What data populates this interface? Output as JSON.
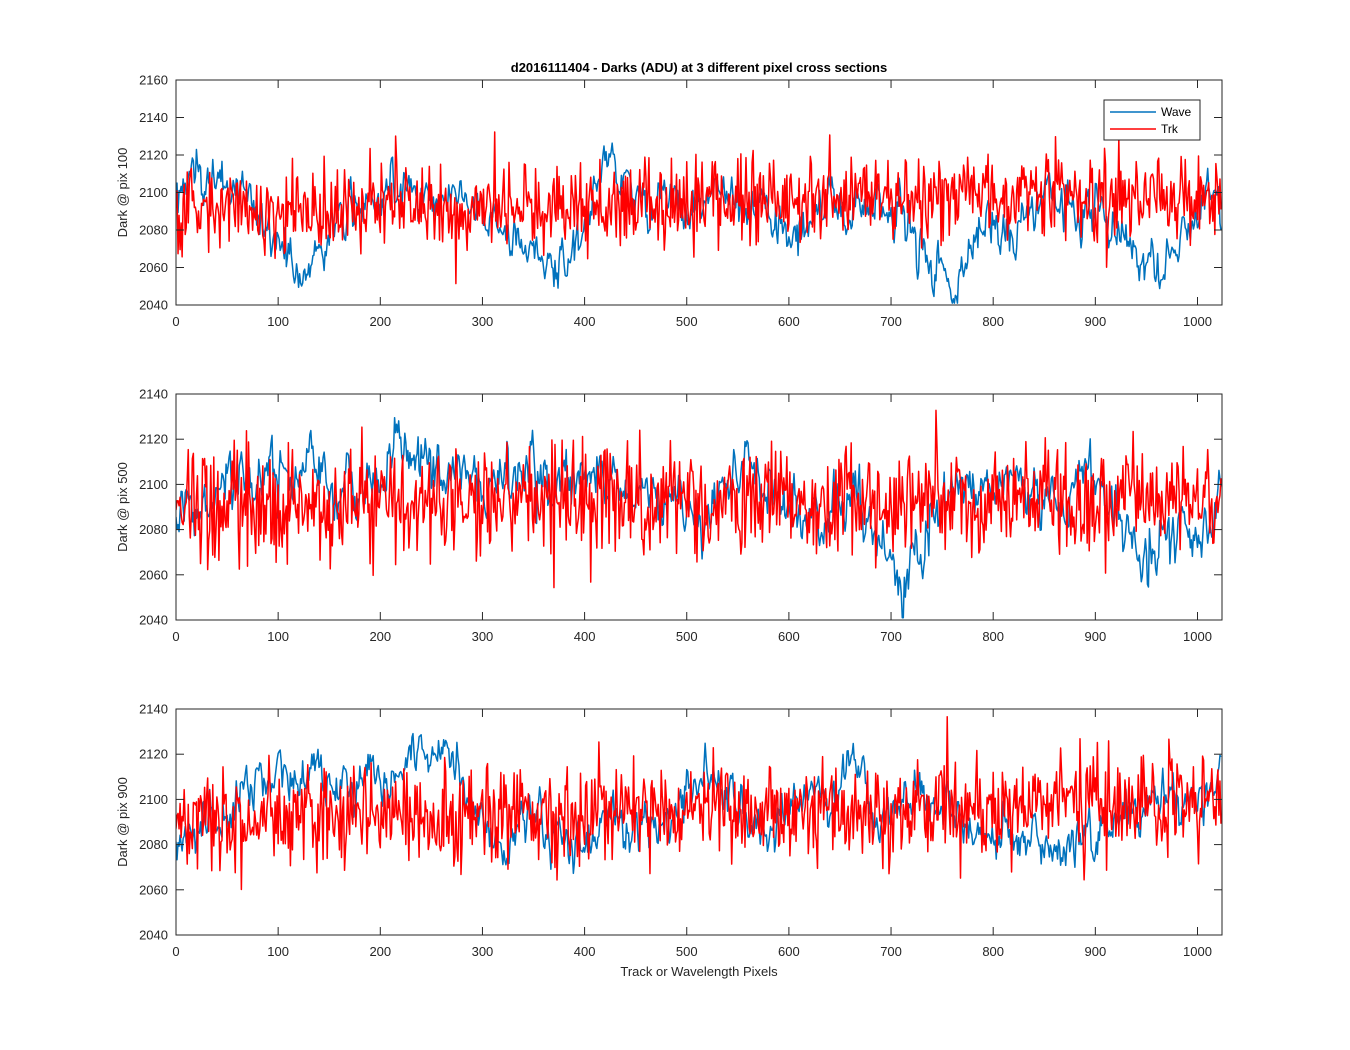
{
  "figure": {
    "title": "d2016111404 - Darks (ADU) at 3 different pixel cross sections",
    "xlabel": "Track or Wavelength Pixels"
  },
  "legend": {
    "entries": [
      "Wave",
      "Trk"
    ],
    "placement": "top-right of first subplot"
  },
  "colors": {
    "wave": "#0072BD",
    "trk": "#FF0000",
    "axes": "#262626",
    "background": "#ffffff"
  },
  "chart_data": [
    {
      "type": "line",
      "ylabel": "Dark @ pix 100",
      "xlim": [
        0,
        1024
      ],
      "ylim": [
        2040,
        2160
      ],
      "xticks": [
        0,
        100,
        200,
        300,
        400,
        500,
        600,
        700,
        800,
        900,
        1000
      ],
      "yticks": [
        2040,
        2060,
        2080,
        2100,
        2120,
        2140,
        2160
      ],
      "grid": false,
      "series": [
        {
          "name": "Wave",
          "knots": {
            "x": [
              0,
              20,
              50,
              80,
              100,
              115,
              130,
              160,
              200,
              215,
              240,
              270,
              300,
              330,
              360,
              380,
              400,
              410,
              420,
              440,
              450,
              480,
              500,
              530,
              560,
              580,
              600,
              630,
              660,
              690,
              710,
              730,
              750,
              762,
              775,
              800,
              820,
              850,
              870,
              900,
              920,
              940,
              960,
              975,
              990,
              1010,
              1024
            ],
            "y": [
              2100,
              2108,
              2105,
              2090,
              2070,
              2060,
              2062,
              2085,
              2100,
              2110,
              2097,
              2100,
              2090,
              2078,
              2060,
              2065,
              2080,
              2105,
              2120,
              2112,
              2092,
              2100,
              2090,
              2100,
              2088,
              2090,
              2072,
              2093,
              2090,
              2095,
              2085,
              2072,
              2060,
              2048,
              2068,
              2085,
              2075,
              2100,
              2093,
              2095,
              2082,
              2068,
              2064,
              2064,
              2080,
              2098,
              2100
            ]
          },
          "noise": 7
        },
        {
          "name": "Trk",
          "mean": 2090,
          "mean_trend_end": 2100,
          "noise": 15
        }
      ]
    },
    {
      "type": "line",
      "ylabel": "Dark @ pix 500",
      "xlim": [
        0,
        1024
      ],
      "ylim": [
        2040,
        2140
      ],
      "xticks": [
        0,
        100,
        200,
        300,
        400,
        500,
        600,
        700,
        800,
        900,
        1000
      ],
      "yticks": [
        2040,
        2060,
        2080,
        2100,
        2120,
        2140
      ],
      "grid": false,
      "series": [
        {
          "name": "Wave",
          "knots": {
            "x": [
              0,
              20,
              50,
              100,
              150,
              190,
              220,
              240,
              270,
              300,
              330,
              350,
              380,
              400,
              420,
              450,
              480,
              500,
              520,
              550,
              570,
              600,
              630,
              660,
              690,
              712,
              730,
              760,
              790,
              820,
              850,
              880,
              900,
              920,
              940,
              960,
              990,
              1010,
              1024
            ],
            "y": [
              2088,
              2083,
              2100,
              2100,
              2098,
              2102,
              2118,
              2112,
              2102,
              2095,
              2102,
              2103,
              2102,
              2108,
              2110,
              2095,
              2095,
              2090,
              2085,
              2110,
              2108,
              2088,
              2085,
              2095,
              2070,
              2055,
              2078,
              2098,
              2100,
              2097,
              2090,
              2095,
              2100,
              2088,
              2070,
              2075,
              2082,
              2076,
              2090
            ]
          },
          "noise": 7
        },
        {
          "name": "Trk",
          "mean": 2090,
          "mean_trend_end": 2094,
          "noise": 16
        }
      ]
    },
    {
      "type": "line",
      "ylabel": "Dark @ pix 900",
      "xlim": [
        0,
        1024
      ],
      "ylim": [
        2040,
        2140
      ],
      "xticks": [
        0,
        100,
        200,
        300,
        400,
        500,
        600,
        700,
        800,
        900,
        1000
      ],
      "yticks": [
        2040,
        2060,
        2080,
        2100,
        2120,
        2140
      ],
      "grid": false,
      "series": [
        {
          "name": "Wave",
          "knots": {
            "x": [
              0,
              20,
              50,
              80,
              120,
              160,
              200,
              240,
              265,
              290,
              320,
              340,
              380,
              400,
              420,
              450,
              480,
              510,
              530,
              560,
              580,
              620,
              650,
              665,
              690,
              730,
              770,
              800,
              830,
              860,
              880,
              900,
              930,
              960,
              1000,
              1024
            ],
            "y": [
              2080,
              2088,
              2095,
              2110,
              2110,
              2105,
              2105,
              2120,
              2122,
              2100,
              2072,
              2095,
              2085,
              2075,
              2090,
              2088,
              2090,
              2112,
              2105,
              2090,
              2085,
              2102,
              2108,
              2118,
              2090,
              2100,
              2090,
              2080,
              2088,
              2075,
              2073,
              2080,
              2095,
              2100,
              2102,
              2110
            ]
          },
          "noise": 6
        },
        {
          "name": "Trk",
          "mean": 2090,
          "mean_trend_end": 2100,
          "noise": 15
        }
      ]
    }
  ]
}
